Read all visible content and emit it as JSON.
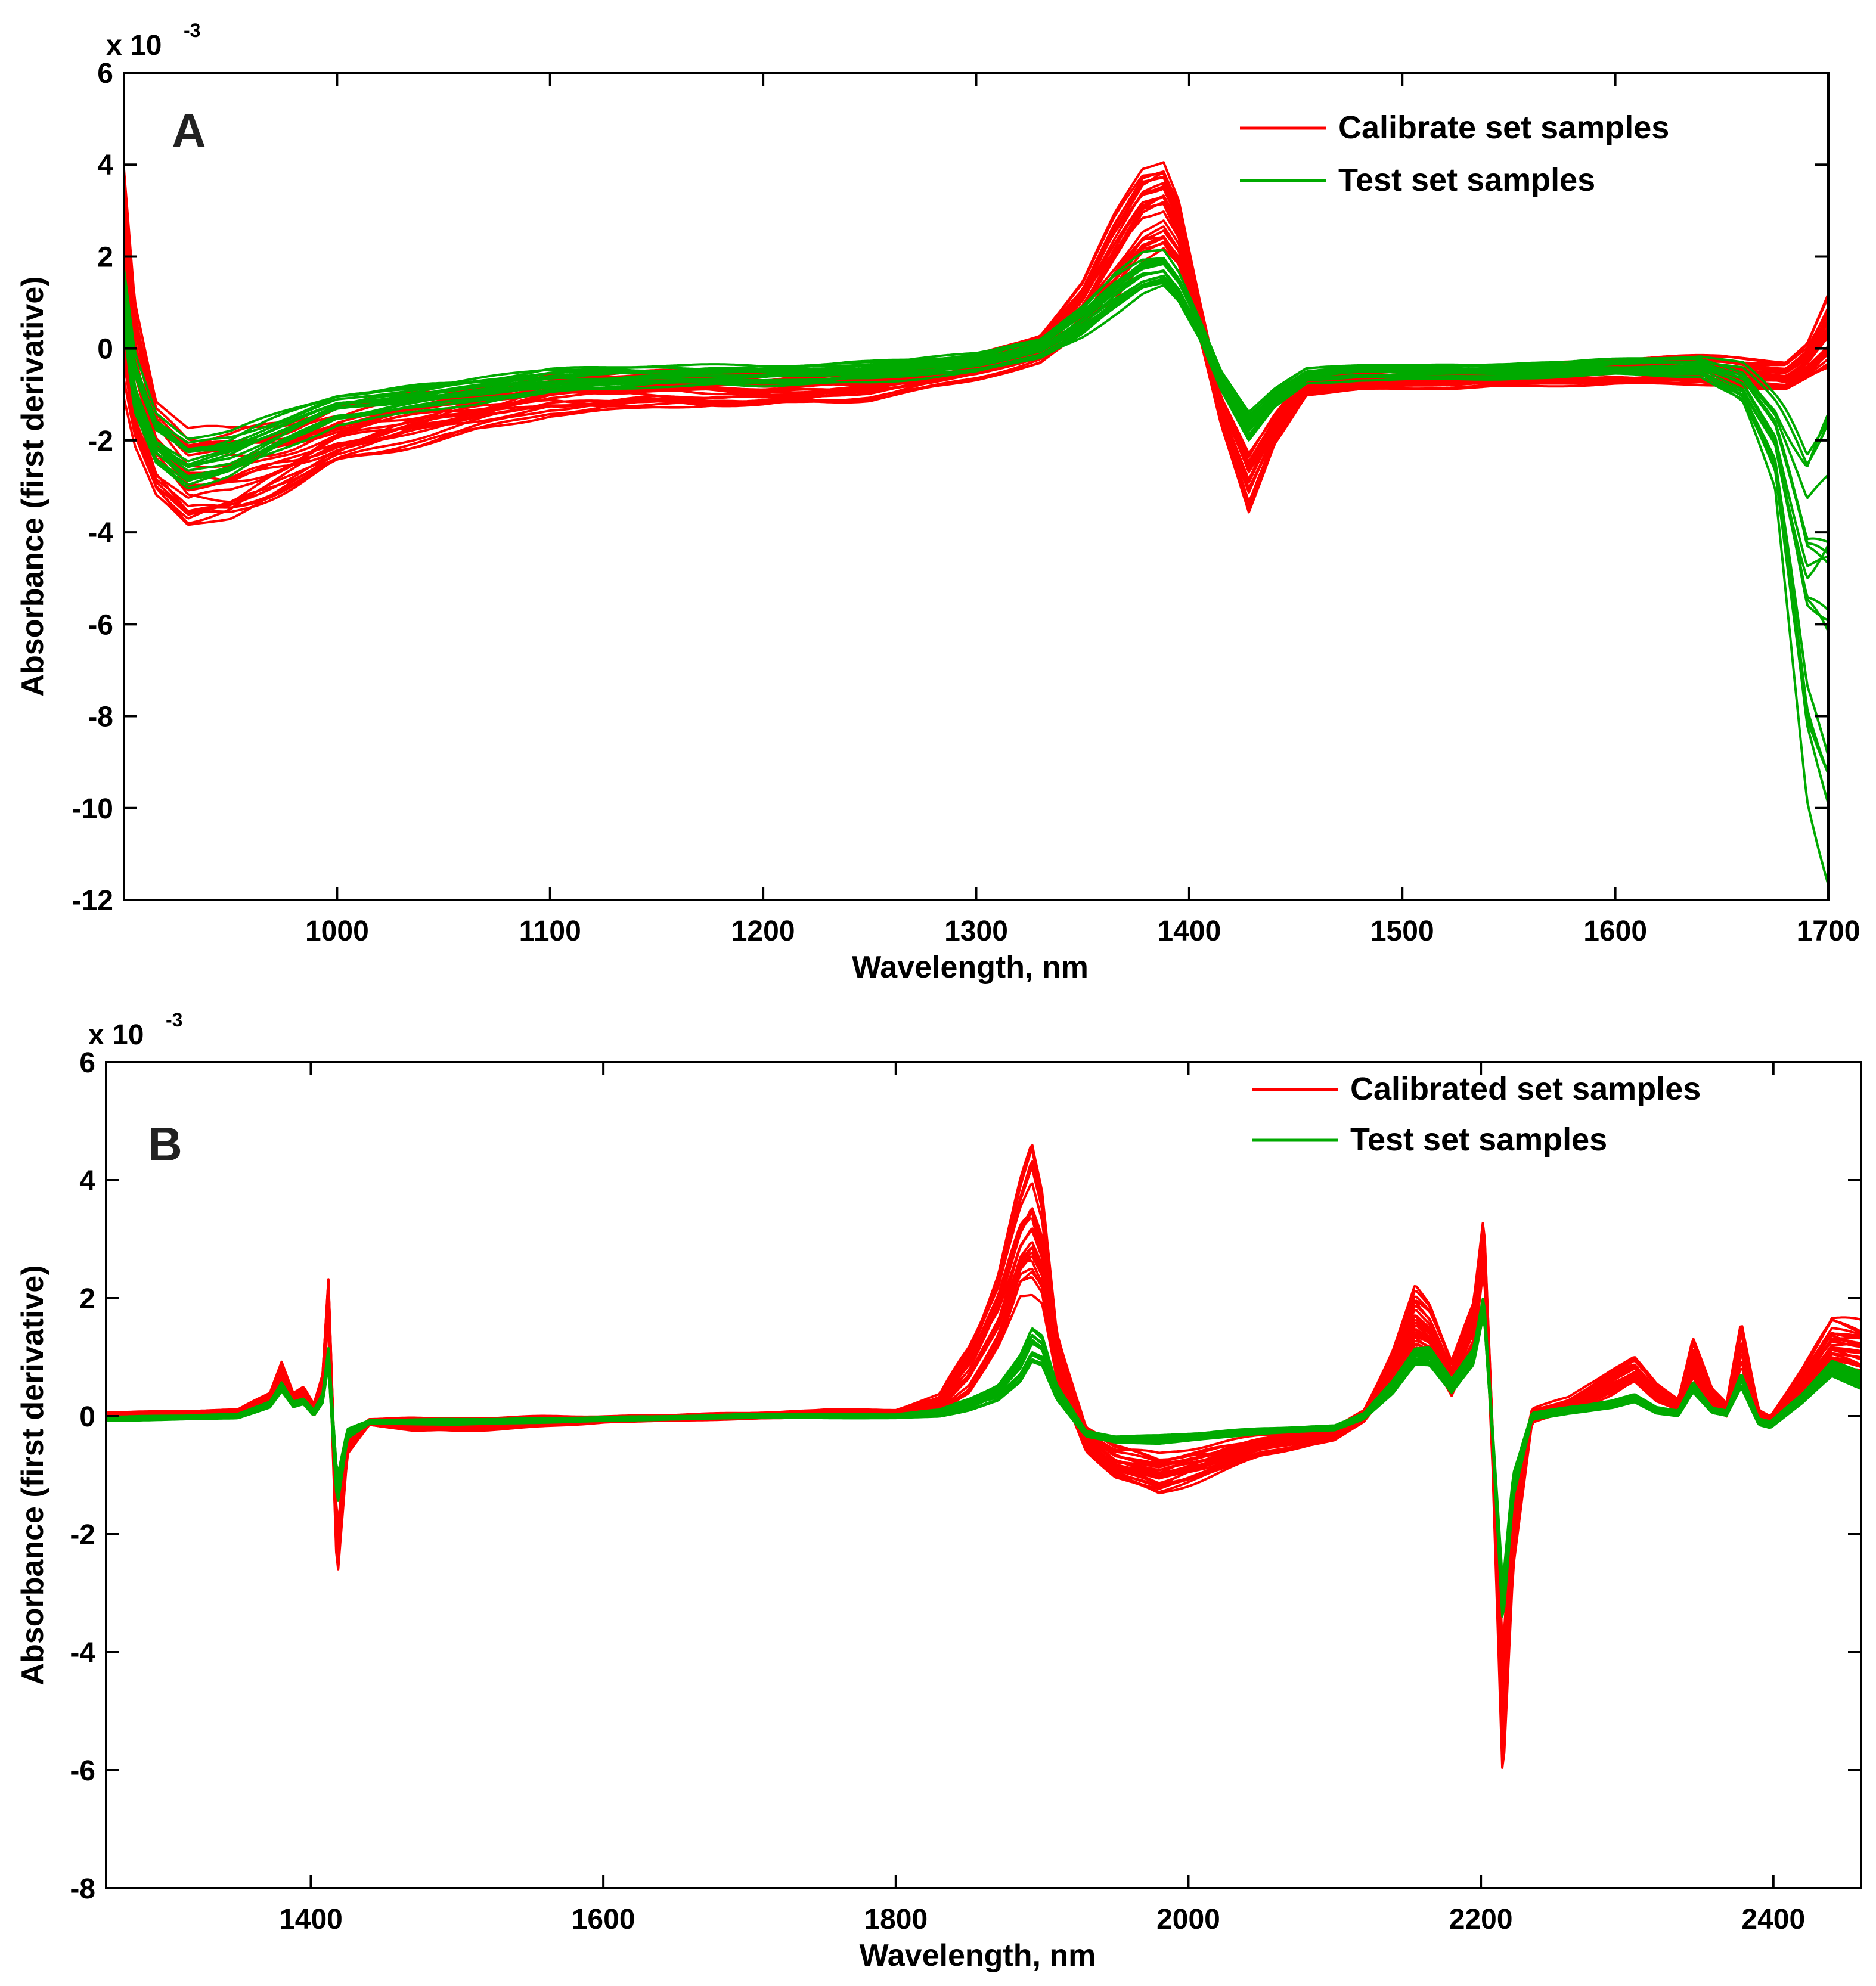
{
  "chart_data": [
    {
      "type": "line",
      "panel_label": "A",
      "scale_label": "x 10",
      "scale_exponent": "-3",
      "xlabel": "Wavelength, nm",
      "ylabel": "Absorbance (first derivative)",
      "xlim": [
        900,
        1700
      ],
      "ylim": [
        -12,
        6
      ],
      "xticks": [
        1000,
        1100,
        1200,
        1300,
        1400,
        1500,
        1600,
        1700
      ],
      "yticks": [
        -12,
        -10,
        -8,
        -6,
        -4,
        -2,
        0,
        2,
        4,
        6
      ],
      "legend_position": "top-right",
      "series": [
        {
          "name": "Calibrate set samples",
          "color": "#ff0000",
          "note": "representative mean spectrum, values x10^-3",
          "x": [
            900,
            905,
            915,
            930,
            950,
            980,
            1000,
            1050,
            1100,
            1150,
            1200,
            1250,
            1300,
            1330,
            1350,
            1365,
            1378,
            1388,
            1395,
            1405,
            1415,
            1428,
            1440,
            1455,
            1480,
            1550,
            1600,
            1650,
            1680,
            1690,
            1700
          ],
          "values": [
            1.5,
            -0.5,
            -2.2,
            -2.9,
            -2.8,
            -2.3,
            -1.9,
            -1.4,
            -1.0,
            -0.9,
            -0.9,
            -0.8,
            -0.4,
            0.0,
            0.9,
            2.0,
            2.9,
            3.1,
            2.5,
            0.6,
            -1.4,
            -3.0,
            -1.8,
            -0.8,
            -0.7,
            -0.6,
            -0.5,
            -0.5,
            -0.6,
            -0.3,
            0.3
          ],
          "band_halfwidth": [
            2.3,
            1.5,
            1.0,
            1.0,
            0.9,
            0.7,
            0.6,
            0.5,
            0.4,
            0.35,
            0.35,
            0.3,
            0.25,
            0.3,
            0.5,
            0.8,
            0.9,
            0.9,
            0.7,
            0.4,
            0.3,
            0.6,
            0.3,
            0.2,
            0.2,
            0.2,
            0.25,
            0.3,
            0.3,
            0.4,
            0.8
          ]
        },
        {
          "name": "Test set samples",
          "color": "#00aa00",
          "note": "representative mean spectrum, values x10^-3",
          "x": [
            900,
            905,
            915,
            930,
            950,
            980,
            1000,
            1050,
            1100,
            1150,
            1200,
            1250,
            1300,
            1330,
            1350,
            1365,
            1378,
            1388,
            1395,
            1405,
            1415,
            1428,
            1440,
            1455,
            1480,
            1550,
            1600,
            1640,
            1660,
            1675,
            1690,
            1700
          ],
          "values": [
            1.0,
            -0.8,
            -2.0,
            -2.5,
            -2.3,
            -1.7,
            -1.3,
            -1.0,
            -0.7,
            -0.6,
            -0.6,
            -0.5,
            -0.3,
            0.0,
            0.6,
            1.2,
            1.6,
            1.7,
            1.3,
            0.4,
            -0.7,
            -1.7,
            -1.1,
            -0.6,
            -0.5,
            -0.5,
            -0.4,
            -0.4,
            -0.8,
            -2.0,
            -5.5,
            -5.8
          ],
          "band_halfwidth": [
            0.6,
            0.6,
            0.5,
            0.5,
            0.45,
            0.35,
            0.3,
            0.25,
            0.25,
            0.2,
            0.2,
            0.2,
            0.2,
            0.2,
            0.3,
            0.4,
            0.4,
            0.35,
            0.3,
            0.2,
            0.2,
            0.3,
            0.2,
            0.15,
            0.15,
            0.15,
            0.15,
            0.2,
            0.4,
            0.9,
            3.5,
            5.0
          ]
        }
      ]
    },
    {
      "type": "line",
      "panel_label": "B",
      "scale_label": "x 10",
      "scale_exponent": "-3",
      "xlabel": "Wavelength, nm",
      "ylabel": "Absorbance (first derivative)",
      "xlim": [
        1260,
        2460
      ],
      "ylim": [
        -8,
        6
      ],
      "xticks": [
        1400,
        1600,
        1800,
        2000,
        2200,
        2400
      ],
      "yticks": [
        -8,
        -6,
        -4,
        -2,
        0,
        2,
        4,
        6
      ],
      "legend_position": "top-right",
      "series": [
        {
          "name": "Calibrated set samples",
          "color": "#ff0000",
          "note": "representative mean spectrum, values x10^-3",
          "x": [
            1260,
            1350,
            1372,
            1380,
            1388,
            1395,
            1402,
            1408,
            1412,
            1418,
            1425,
            1440,
            1470,
            1500,
            1600,
            1700,
            1750,
            1800,
            1830,
            1850,
            1870,
            1885,
            1893,
            1900,
            1910,
            1930,
            1950,
            1980,
            2050,
            2100,
            2120,
            2140,
            2155,
            2165,
            2180,
            2195,
            2202,
            2208,
            2215,
            2222,
            2235,
            2260,
            2290,
            2305,
            2320,
            2335,
            2345,
            2358,
            2368,
            2378,
            2390,
            2398,
            2420,
            2440,
            2460
          ],
          "values": [
            0.0,
            0.05,
            0.3,
            0.8,
            0.3,
            0.4,
            0.1,
            0.5,
            2.0,
            -2.4,
            -0.5,
            -0.1,
            -0.15,
            -0.15,
            -0.05,
            0.0,
            0.05,
            0.05,
            0.2,
            0.8,
            1.8,
            3.0,
            3.3,
            2.8,
            1.0,
            -0.4,
            -0.8,
            -1.0,
            -0.5,
            -0.3,
            0.0,
            0.8,
            1.6,
            1.4,
            0.6,
            1.5,
            3.0,
            -0.5,
            -5.0,
            -2.0,
            0.0,
            0.2,
            0.6,
            0.8,
            0.4,
            0.2,
            1.0,
            0.3,
            0.1,
            1.2,
            0.0,
            -0.1,
            0.6,
            1.2,
            1.1
          ],
          "band_halfwidth": [
            0.05,
            0.05,
            0.1,
            0.15,
            0.1,
            0.1,
            0.1,
            0.2,
            0.3,
            0.4,
            0.15,
            0.05,
            0.1,
            0.1,
            0.05,
            0.05,
            0.05,
            0.05,
            0.15,
            0.4,
            0.6,
            0.9,
            1.2,
            0.9,
            0.4,
            0.2,
            0.25,
            0.3,
            0.15,
            0.1,
            0.1,
            0.3,
            0.5,
            0.4,
            0.3,
            0.4,
            0.4,
            0.3,
            1.0,
            0.5,
            0.1,
            0.1,
            0.2,
            0.2,
            0.15,
            0.1,
            0.35,
            0.15,
            0.1,
            0.35,
            0.1,
            0.1,
            0.2,
            0.4,
            0.4
          ]
        },
        {
          "name": "Test set samples",
          "color": "#00aa00",
          "note": "representative mean spectrum, values x10^-3",
          "x": [
            1260,
            1350,
            1372,
            1380,
            1388,
            1395,
            1402,
            1408,
            1412,
            1418,
            1425,
            1440,
            1470,
            1500,
            1600,
            1700,
            1750,
            1800,
            1830,
            1850,
            1870,
            1885,
            1893,
            1900,
            1910,
            1930,
            1950,
            1980,
            2050,
            2100,
            2120,
            2140,
            2155,
            2165,
            2180,
            2195,
            2202,
            2208,
            2215,
            2222,
            2235,
            2260,
            2290,
            2305,
            2320,
            2335,
            2345,
            2358,
            2368,
            2378,
            2390,
            2398,
            2420,
            2440,
            2460
          ],
          "values": [
            -0.05,
            0.0,
            0.2,
            0.5,
            0.2,
            0.25,
            0.05,
            0.3,
            1.0,
            -1.3,
            -0.3,
            -0.1,
            -0.1,
            -0.1,
            -0.05,
            0.0,
            0.0,
            0.0,
            0.05,
            0.2,
            0.4,
            0.8,
            1.2,
            1.1,
            0.4,
            -0.3,
            -0.4,
            -0.4,
            -0.25,
            -0.2,
            0.0,
            0.5,
            1.0,
            1.0,
            0.5,
            1.0,
            1.9,
            -0.3,
            -3.2,
            -1.2,
            0.0,
            0.1,
            0.2,
            0.3,
            0.1,
            0.05,
            0.5,
            0.1,
            0.05,
            0.6,
            -0.1,
            -0.15,
            0.3,
            0.8,
            0.6
          ],
          "band_halfwidth": [
            0.03,
            0.03,
            0.05,
            0.08,
            0.05,
            0.05,
            0.05,
            0.08,
            0.15,
            0.25,
            0.08,
            0.03,
            0.04,
            0.04,
            0.03,
            0.03,
            0.03,
            0.03,
            0.05,
            0.1,
            0.15,
            0.25,
            0.3,
            0.25,
            0.12,
            0.05,
            0.05,
            0.06,
            0.04,
            0.04,
            0.05,
            0.12,
            0.15,
            0.15,
            0.1,
            0.12,
            0.15,
            0.1,
            0.35,
            0.2,
            0.05,
            0.05,
            0.06,
            0.06,
            0.05,
            0.05,
            0.1,
            0.05,
            0.05,
            0.12,
            0.05,
            0.05,
            0.08,
            0.12,
            0.12
          ]
        }
      ]
    }
  ]
}
